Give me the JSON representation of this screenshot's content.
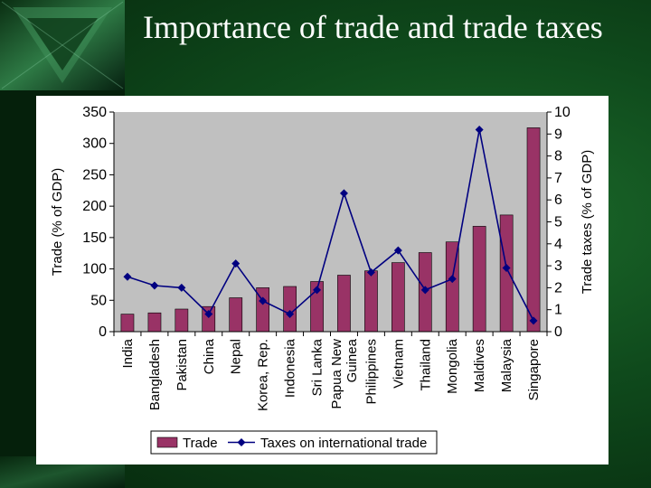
{
  "slide": {
    "title": "Importance of trade and trade taxes"
  },
  "colors": {
    "slide_background": "#0f4a1c",
    "plot_background": "#c0c0c0",
    "bar": "#993366",
    "line": "#000080"
  },
  "chart_data": {
    "type": "bar+line",
    "title": "",
    "categories": [
      "India",
      "Bangladesh",
      "Pakistan",
      "China",
      "Nepal",
      "Korea, Rep.",
      "Indonesia",
      "Sri Lanka",
      "Papua New Guinea",
      "Philippines",
      "Vietnam",
      "Thailand",
      "Mongolia",
      "Maldives",
      "Malaysia",
      "Singapore"
    ],
    "category_display_lines": [
      [
        "India"
      ],
      [
        "Bangladesh"
      ],
      [
        "Pakistan"
      ],
      [
        "China"
      ],
      [
        "Nepal"
      ],
      [
        "Korea, Rep."
      ],
      [
        "Indonesia"
      ],
      [
        "Sri Lanka"
      ],
      [
        "Papua New",
        "Guinea"
      ],
      [
        "Philippines"
      ],
      [
        "Vietnam"
      ],
      [
        "Thailand"
      ],
      [
        "Mongolia"
      ],
      [
        "Maldives"
      ],
      [
        "Malaysia"
      ],
      [
        "Singapore"
      ]
    ],
    "series": [
      {
        "name": "Trade",
        "type": "bar",
        "axis": "left",
        "values": [
          28,
          30,
          36,
          40,
          54,
          70,
          72,
          80,
          90,
          97,
          110,
          126,
          143,
          168,
          186,
          325
        ]
      },
      {
        "name": "Taxes on international trade",
        "type": "line",
        "axis": "right",
        "values": [
          2.5,
          2.1,
          2.0,
          0.8,
          3.1,
          1.4,
          0.8,
          1.9,
          6.3,
          2.7,
          3.7,
          1.9,
          2.4,
          9.2,
          2.9,
          0.5
        ]
      }
    ],
    "left_axis": {
      "label": "Trade (% of GDP)",
      "ylim": [
        0,
        350
      ],
      "ticks": [
        0,
        50,
        100,
        150,
        200,
        250,
        300,
        350
      ]
    },
    "right_axis": {
      "label": "Trade taxes (% of GDP)",
      "ylim": [
        0,
        10
      ],
      "ticks": [
        0,
        1,
        2,
        3,
        4,
        5,
        6,
        7,
        8,
        9,
        10
      ]
    },
    "grid": false,
    "legend": {
      "placement": "bottom",
      "entries": [
        "Trade",
        "Taxes on international trade"
      ]
    }
  }
}
